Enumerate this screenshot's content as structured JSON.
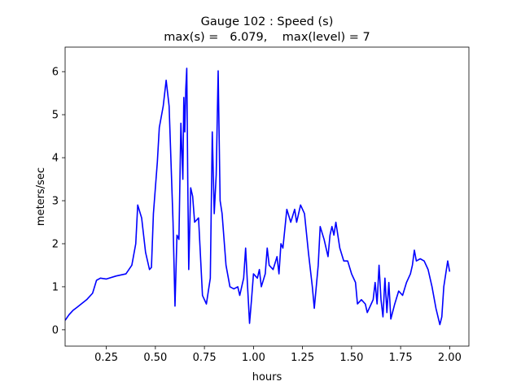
{
  "chart_data": {
    "type": "line",
    "title": "Gauge 102 : Speed (s)",
    "subtitle": "max(s) =   6.079,    max(level) = 7",
    "xlabel": "hours",
    "ylabel": "meters/sec",
    "color": "#0000ff",
    "x": [
      0.04,
      0.06,
      0.08,
      0.1,
      0.15,
      0.18,
      0.2,
      0.22,
      0.25,
      0.3,
      0.35,
      0.38,
      0.4,
      0.41,
      0.43,
      0.45,
      0.47,
      0.48,
      0.49,
      0.51,
      0.52,
      0.54,
      0.555,
      0.57,
      0.59,
      0.6,
      0.61,
      0.62,
      0.63,
      0.64,
      0.645,
      0.65,
      0.655,
      0.66,
      0.665,
      0.67,
      0.68,
      0.69,
      0.7,
      0.72,
      0.74,
      0.76,
      0.78,
      0.79,
      0.8,
      0.81,
      0.82,
      0.83,
      0.84,
      0.86,
      0.88,
      0.9,
      0.92,
      0.93,
      0.95,
      0.96,
      0.97,
      0.98,
      0.99,
      1.0,
      1.02,
      1.03,
      1.04,
      1.06,
      1.07,
      1.08,
      1.1,
      1.12,
      1.13,
      1.14,
      1.15,
      1.17,
      1.19,
      1.21,
      1.22,
      1.24,
      1.26,
      1.28,
      1.3,
      1.31,
      1.33,
      1.34,
      1.36,
      1.38,
      1.39,
      1.4,
      1.41,
      1.42,
      1.44,
      1.46,
      1.48,
      1.5,
      1.52,
      1.53,
      1.55,
      1.57,
      1.58,
      1.6,
      1.61,
      1.62,
      1.63,
      1.64,
      1.65,
      1.66,
      1.67,
      1.68,
      1.69,
      1.7,
      1.72,
      1.74,
      1.76,
      1.78,
      1.8,
      1.81,
      1.82,
      1.83,
      1.85,
      1.87,
      1.89,
      1.91,
      1.93,
      1.95,
      1.96,
      1.97,
      1.99,
      2.0
    ],
    "values": [
      0.22,
      0.35,
      0.45,
      0.52,
      0.7,
      0.85,
      1.15,
      1.2,
      1.18,
      1.25,
      1.3,
      1.5,
      2.0,
      2.9,
      2.6,
      1.8,
      1.4,
      1.45,
      2.7,
      3.9,
      4.7,
      5.2,
      5.8,
      5.2,
      2.5,
      0.55,
      2.2,
      2.1,
      4.8,
      3.5,
      5.4,
      4.6,
      5.6,
      6.079,
      3.5,
      1.4,
      3.3,
      3.1,
      2.5,
      2.6,
      0.8,
      0.6,
      1.2,
      4.6,
      2.7,
      3.6,
      6.02,
      3.0,
      2.7,
      1.5,
      1.0,
      0.95,
      1.0,
      0.8,
      1.2,
      1.9,
      1.0,
      0.15,
      0.7,
      1.3,
      1.2,
      1.4,
      1.0,
      1.3,
      1.9,
      1.5,
      1.4,
      1.7,
      1.3,
      2.0,
      1.9,
      2.8,
      2.5,
      2.8,
      2.5,
      2.9,
      2.7,
      1.8,
      1.0,
      0.5,
      1.5,
      2.4,
      2.1,
      1.7,
      2.2,
      2.4,
      2.2,
      2.5,
      1.9,
      1.6,
      1.6,
      1.3,
      1.1,
      0.6,
      0.7,
      0.6,
      0.4,
      0.6,
      0.7,
      1.1,
      0.6,
      1.5,
      0.7,
      0.3,
      1.2,
      0.4,
      1.1,
      0.25,
      0.6,
      0.9,
      0.8,
      1.1,
      1.3,
      1.5,
      1.85,
      1.6,
      1.65,
      1.6,
      1.4,
      1.0,
      0.5,
      0.12,
      0.3,
      1.0,
      1.6,
      1.35
    ],
    "xlim": [
      0.04,
      2.098
    ],
    "ylim": [
      -0.38,
      6.57
    ],
    "xticks": [
      0.25,
      {
        "value": 0.5,
        "label": "0.50"
      },
      0.75,
      {
        "value": 1,
        "label": "1.00"
      },
      1.25,
      {
        "value": 1.5,
        "label": "1.50"
      },
      1.75,
      {
        "value": 2,
        "label": "2.00"
      }
    ],
    "yticks": [
      0,
      1,
      2,
      3,
      4,
      5,
      6
    ]
  }
}
